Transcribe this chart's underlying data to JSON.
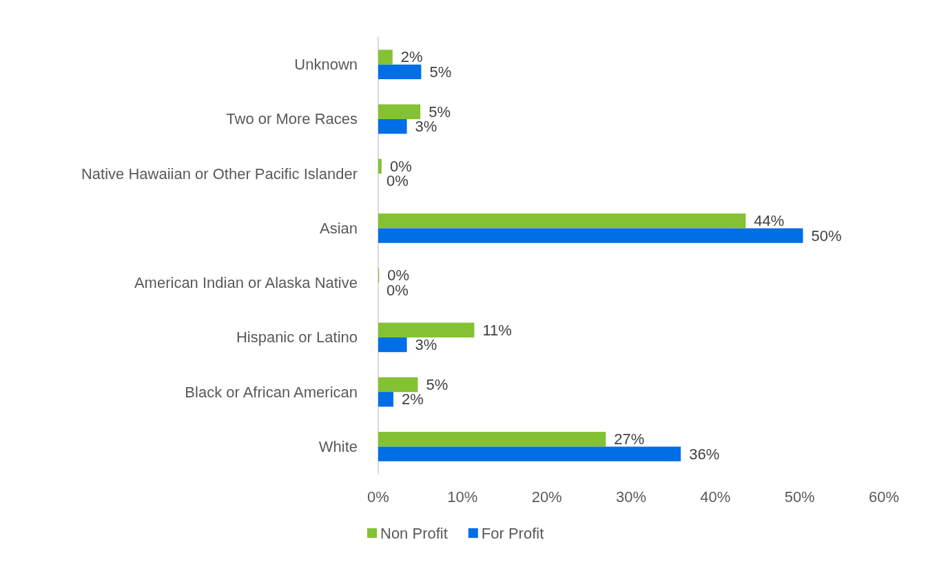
{
  "chart_data": {
    "type": "bar",
    "orientation": "horizontal",
    "categories": [
      "Unknown",
      "Two or More Races",
      "Native Hawaiian or Other Pacific Islander",
      "Asian",
      "American Indian or Alaska Native",
      "Hispanic or Latino",
      "Black or African American",
      "White"
    ],
    "series": [
      {
        "name": "Non Profit",
        "color": "#84c234",
        "values": [
          1.7,
          5.0,
          0.4,
          43.6,
          0.1,
          11.4,
          4.7,
          27.0
        ],
        "value_labels": [
          "2%",
          "5%",
          "0%",
          "44%",
          "0%",
          "11%",
          "5%",
          "27%"
        ]
      },
      {
        "name": "For Profit",
        "color": "#006ee6",
        "values": [
          5.1,
          3.4,
          0,
          50.4,
          0,
          3.4,
          1.8,
          35.9
        ],
        "value_labels": [
          "5%",
          "3%",
          "0%",
          "50%",
          "0%",
          "3%",
          "2%",
          "36%"
        ]
      }
    ],
    "xlim": [
      0,
      60
    ],
    "xticks": [
      {
        "value": 0,
        "label": "0%"
      },
      {
        "value": 10,
        "label": "10%"
      },
      {
        "value": 20,
        "label": "20%"
      },
      {
        "value": 30,
        "label": "30%"
      },
      {
        "value": 40,
        "label": "40%"
      },
      {
        "value": 50,
        "label": "50%"
      },
      {
        "value": 60,
        "label": "60%"
      }
    ],
    "grid": false,
    "legend": "bottom"
  }
}
